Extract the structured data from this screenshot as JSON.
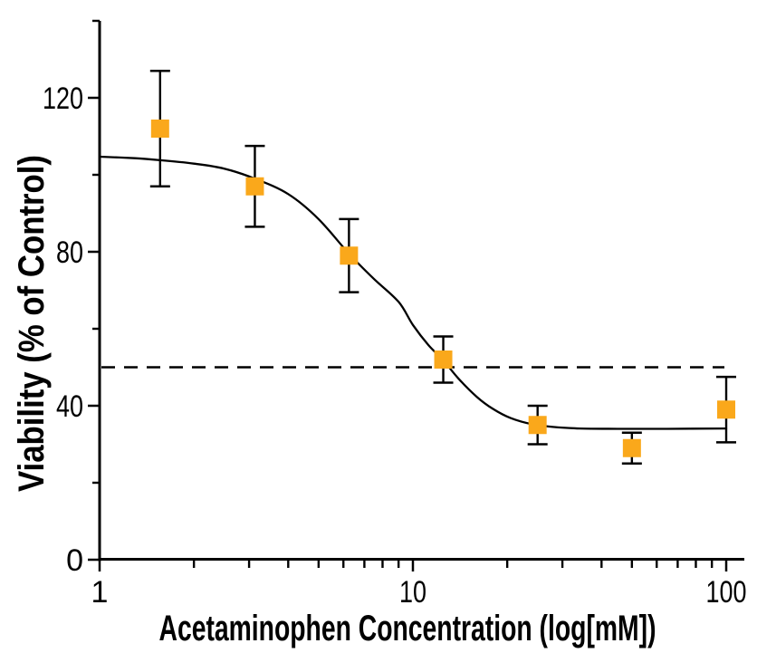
{
  "page": {
    "background": "#FFFFFF"
  },
  "chart_data": {
    "type": "scatter",
    "title": "",
    "xlabel": "Acetaminophen Concentration (log[mM])",
    "ylabel": "Viability (% of Control)",
    "x_scale": "log",
    "xlim": [
      1,
      110
    ],
    "ylim": [
      0,
      140
    ],
    "x_major_ticks": [
      1,
      10,
      100
    ],
    "x_tick_labels": [
      "1",
      "10",
      "100"
    ],
    "x_minor_ticks": [
      2,
      3,
      4,
      5,
      6,
      7,
      8,
      9,
      20,
      30,
      40,
      50,
      60,
      70,
      80,
      90
    ],
    "y_major_ticks": [
      0,
      40,
      80,
      120
    ],
    "y_tick_labels": [
      "0",
      "40",
      "80",
      "120"
    ],
    "y_minor_ticks": [
      20,
      60,
      100,
      140
    ],
    "grid": false,
    "legend": null,
    "axis_color": "#000000",
    "series": [
      {
        "name": "viability",
        "marker": "square",
        "marker_color": "#FAA81B",
        "marker_size": 20,
        "points": [
          {
            "x": 1.56,
            "y": 112,
            "err": 15
          },
          {
            "x": 3.13,
            "y": 97,
            "err": 10.5
          },
          {
            "x": 6.25,
            "y": 79,
            "err": 9.5
          },
          {
            "x": 12.5,
            "y": 52,
            "err": 6
          },
          {
            "x": 25,
            "y": 35,
            "err": 5
          },
          {
            "x": 50,
            "y": 29,
            "err": 4
          },
          {
            "x": 100,
            "y": 39,
            "err": 8.5
          }
        ]
      }
    ],
    "fit_curve": {
      "name": "sigmoidal-fit",
      "color": "#000000",
      "top_plateau": 105,
      "bottom_plateau": 34,
      "samples": [
        [
          1,
          104.7
        ],
        [
          1.3,
          104.3
        ],
        [
          1.56,
          103.8
        ],
        [
          2,
          102.9
        ],
        [
          2.5,
          101.6
        ],
        [
          3.13,
          99
        ],
        [
          4,
          95
        ],
        [
          5,
          88.5
        ],
        [
          6.25,
          79.5
        ],
        [
          7.5,
          73
        ],
        [
          9,
          67
        ],
        [
          10,
          61
        ],
        [
          11.2,
          55.8
        ],
        [
          12.5,
          51.8
        ],
        [
          14,
          47
        ],
        [
          16,
          42.3
        ],
        [
          18,
          39.2
        ],
        [
          20.5,
          36.8
        ],
        [
          24,
          35.2
        ],
        [
          28,
          34.5
        ],
        [
          34,
          34.1
        ],
        [
          45,
          34
        ],
        [
          65,
          34
        ],
        [
          100,
          34.1
        ]
      ]
    },
    "reference_line": {
      "y": 50,
      "style": "dashed",
      "color": "#000000"
    }
  }
}
